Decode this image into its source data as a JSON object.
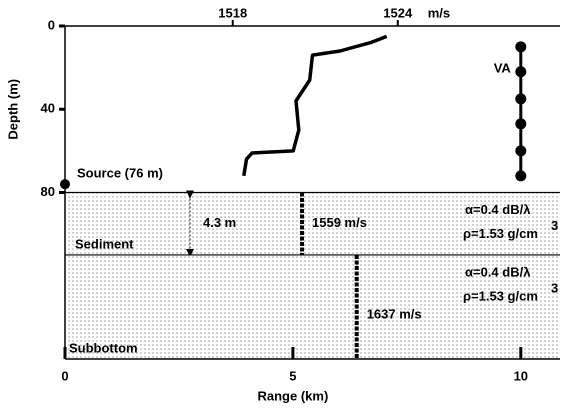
{
  "chart_data": {
    "type": "line",
    "x_label": "Range (km)",
    "y_label": "Depth (m)",
    "xlim": [
      0,
      10.86
    ],
    "xticks": [
      0,
      5,
      10
    ],
    "ylim": [
      0,
      160
    ],
    "yticks": [
      0,
      40,
      80
    ],
    "x2lim": [
      1511.9,
      1529.9
    ],
    "x2ticks": [
      1518,
      1524
    ],
    "x2_unit": "m/s",
    "series": [
      {
        "axis": "x2",
        "color": "#000000",
        "x": [
          1523.6,
          1523.0,
          1521.9,
          1520.9,
          1520.8,
          1520.3,
          1520.4,
          1520.2,
          1518.7,
          1518.5,
          1518.4
        ],
        "values": [
          5,
          8,
          12,
          14,
          26,
          36,
          50,
          60,
          61,
          64,
          72
        ]
      }
    ],
    "source": {
      "label": "Source (76 m)",
      "range": 0,
      "depth": 76
    },
    "array": {
      "label": "VA",
      "range": 10,
      "depths": [
        10,
        22,
        35,
        47,
        60,
        72
      ]
    },
    "layers": [
      {
        "label": "Sediment",
        "top": 80,
        "bottom": 110,
        "bar_range": 5.2,
        "speed": "1559 m/s",
        "thickness": "4.3 m",
        "attenuation": "α=0.4 dB/λ",
        "density": "ρ=1.53 g/cm",
        "density_exp": "3"
      },
      {
        "label": "Subbottom",
        "top": 110,
        "bottom": 160,
        "bar_range": 6.4,
        "speed": "1637 m/s",
        "attenuation": "α=0.4 dB/λ",
        "density": "ρ=1.53 g/cm",
        "density_exp": "3"
      }
    ]
  }
}
